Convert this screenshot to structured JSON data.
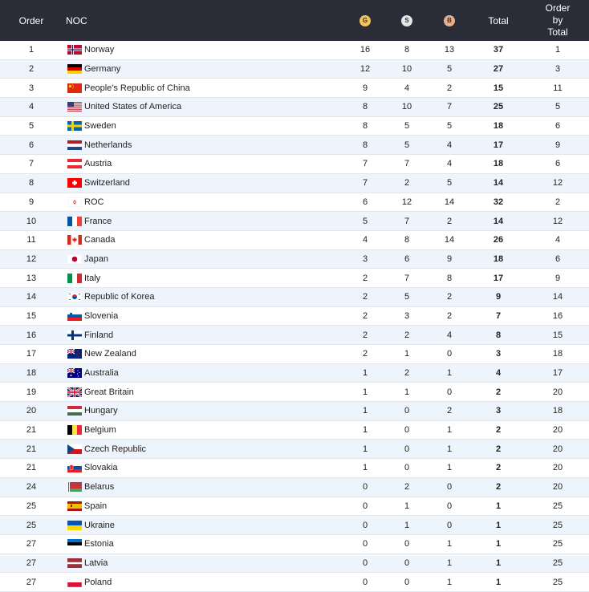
{
  "header": {
    "order": "Order",
    "noc": "NOC",
    "gold": "G",
    "silver": "S",
    "bronze": "B",
    "total": "Total",
    "order_by_total_1": "Order",
    "order_by_total_2": "by",
    "order_by_total_3": "Total",
    "gold_color": "#f2c35a",
    "silver_color": "#e6e6e6",
    "bronze_color": "#e8b08a"
  },
  "rows": [
    {
      "order": "1",
      "noc": "Norway",
      "flag": "norway",
      "g": "16",
      "s": "8",
      "b": "13",
      "total": "37",
      "obt": "1"
    },
    {
      "order": "2",
      "noc": "Germany",
      "flag": "germany",
      "g": "12",
      "s": "10",
      "b": "5",
      "total": "27",
      "obt": "3"
    },
    {
      "order": "3",
      "noc": "People's Republic of China",
      "flag": "china",
      "g": "9",
      "s": "4",
      "b": "2",
      "total": "15",
      "obt": "11"
    },
    {
      "order": "4",
      "noc": "United States of America",
      "flag": "usa",
      "g": "8",
      "s": "10",
      "b": "7",
      "total": "25",
      "obt": "5"
    },
    {
      "order": "5",
      "noc": "Sweden",
      "flag": "sweden",
      "g": "8",
      "s": "5",
      "b": "5",
      "total": "18",
      "obt": "6"
    },
    {
      "order": "6",
      "noc": "Netherlands",
      "flag": "netherlands",
      "g": "8",
      "s": "5",
      "b": "4",
      "total": "17",
      "obt": "9"
    },
    {
      "order": "7",
      "noc": "Austria",
      "flag": "austria",
      "g": "7",
      "s": "7",
      "b": "4",
      "total": "18",
      "obt": "6"
    },
    {
      "order": "8",
      "noc": "Switzerland",
      "flag": "switzerland",
      "g": "7",
      "s": "2",
      "b": "5",
      "total": "14",
      "obt": "12"
    },
    {
      "order": "9",
      "noc": "ROC",
      "flag": "roc",
      "g": "6",
      "s": "12",
      "b": "14",
      "total": "32",
      "obt": "2"
    },
    {
      "order": "10",
      "noc": "France",
      "flag": "france",
      "g": "5",
      "s": "7",
      "b": "2",
      "total": "14",
      "obt": "12"
    },
    {
      "order": "11",
      "noc": "Canada",
      "flag": "canada",
      "g": "4",
      "s": "8",
      "b": "14",
      "total": "26",
      "obt": "4"
    },
    {
      "order": "12",
      "noc": "Japan",
      "flag": "japan",
      "g": "3",
      "s": "6",
      "b": "9",
      "total": "18",
      "obt": "6"
    },
    {
      "order": "13",
      "noc": "Italy",
      "flag": "italy",
      "g": "2",
      "s": "7",
      "b": "8",
      "total": "17",
      "obt": "9"
    },
    {
      "order": "14",
      "noc": "Republic of Korea",
      "flag": "korea",
      "g": "2",
      "s": "5",
      "b": "2",
      "total": "9",
      "obt": "14"
    },
    {
      "order": "15",
      "noc": "Slovenia",
      "flag": "slovenia",
      "g": "2",
      "s": "3",
      "b": "2",
      "total": "7",
      "obt": "16"
    },
    {
      "order": "16",
      "noc": "Finland",
      "flag": "finland",
      "g": "2",
      "s": "2",
      "b": "4",
      "total": "8",
      "obt": "15"
    },
    {
      "order": "17",
      "noc": "New Zealand",
      "flag": "newzealand",
      "g": "2",
      "s": "1",
      "b": "0",
      "total": "3",
      "obt": "18"
    },
    {
      "order": "18",
      "noc": "Australia",
      "flag": "australia",
      "g": "1",
      "s": "2",
      "b": "1",
      "total": "4",
      "obt": "17"
    },
    {
      "order": "19",
      "noc": "Great Britain",
      "flag": "gb",
      "g": "1",
      "s": "1",
      "b": "0",
      "total": "2",
      "obt": "20"
    },
    {
      "order": "20",
      "noc": "Hungary",
      "flag": "hungary",
      "g": "1",
      "s": "0",
      "b": "2",
      "total": "3",
      "obt": "18"
    },
    {
      "order": "21",
      "noc": "Belgium",
      "flag": "belgium",
      "g": "1",
      "s": "0",
      "b": "1",
      "total": "2",
      "obt": "20"
    },
    {
      "order": "21",
      "noc": "Czech Republic",
      "flag": "czech",
      "g": "1",
      "s": "0",
      "b": "1",
      "total": "2",
      "obt": "20"
    },
    {
      "order": "21",
      "noc": "Slovakia",
      "flag": "slovakia",
      "g": "1",
      "s": "0",
      "b": "1",
      "total": "2",
      "obt": "20"
    },
    {
      "order": "24",
      "noc": "Belarus",
      "flag": "belarus",
      "g": "0",
      "s": "2",
      "b": "0",
      "total": "2",
      "obt": "20"
    },
    {
      "order": "25",
      "noc": "Spain",
      "flag": "spain",
      "g": "0",
      "s": "1",
      "b": "0",
      "total": "1",
      "obt": "25"
    },
    {
      "order": "25",
      "noc": "Ukraine",
      "flag": "ukraine",
      "g": "0",
      "s": "1",
      "b": "0",
      "total": "1",
      "obt": "25"
    },
    {
      "order": "27",
      "noc": "Estonia",
      "flag": "estonia",
      "g": "0",
      "s": "0",
      "b": "1",
      "total": "1",
      "obt": "25"
    },
    {
      "order": "27",
      "noc": "Latvia",
      "flag": "latvia",
      "g": "0",
      "s": "0",
      "b": "1",
      "total": "1",
      "obt": "25"
    },
    {
      "order": "27",
      "noc": "Poland",
      "flag": "poland",
      "g": "0",
      "s": "0",
      "b": "1",
      "total": "1",
      "obt": "25"
    }
  ]
}
